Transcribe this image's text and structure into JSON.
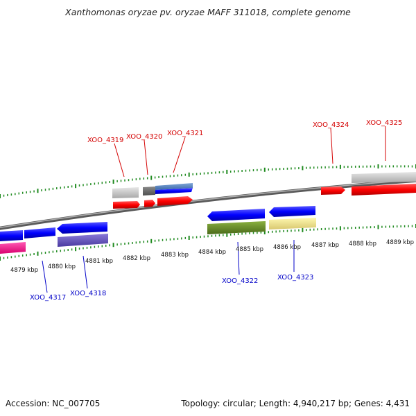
{
  "title": "Xanthomonas oryzae pv. oryzae MAFF 311018, complete genome",
  "footer": {
    "accession": "Accession: NC_007705",
    "summary": "Topology: circular; Length: 4,940,217 bp; Genes: 4,431"
  },
  "kbp_labels": [
    "4879 kbp",
    "4880 kbp",
    "4881 kbp",
    "4882 kbp",
    "4883 kbp",
    "4884 kbp",
    "4885 kbp",
    "4886 kbp",
    "4887 kbp",
    "4888 kbp",
    "4889 kbp"
  ],
  "genes_forward": [
    {
      "id": "XOO_4319",
      "color": "#ff0000"
    },
    {
      "id": "XOO_4320",
      "color": "#ff0000"
    },
    {
      "id": "XOO_4321",
      "color": "#ff0000"
    },
    {
      "id": "XOO_4324",
      "color": "#ff0000"
    },
    {
      "id": "XOO_4325",
      "color": "#ff0000"
    }
  ],
  "genes_reverse": [
    {
      "id": "XOO_4317",
      "color": "#0000ff"
    },
    {
      "id": "XOO_4318",
      "color": "#0000ff"
    },
    {
      "id": "XOO_4322",
      "color": "#0000ff"
    },
    {
      "id": "XOO_4323",
      "color": "#0000ff"
    }
  ],
  "colors": {
    "forward_label": "#d40000",
    "reverse_label": "#0000c8",
    "tick": "#1f8a1f",
    "backbone": "#808080"
  }
}
